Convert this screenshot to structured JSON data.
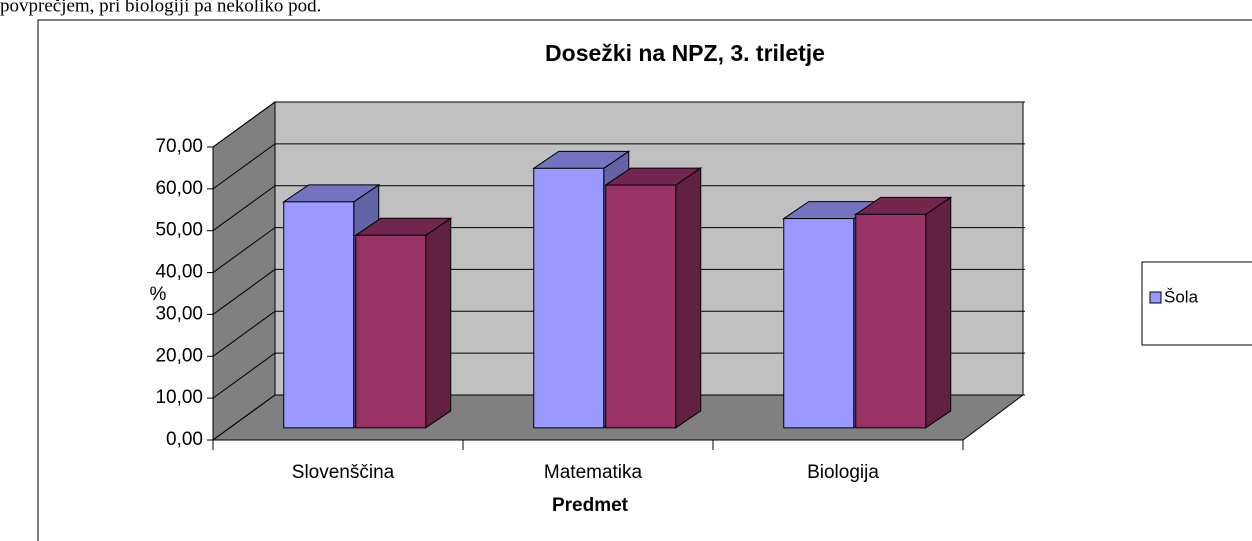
{
  "page_text": "povprečjem, pri biologiji pa nekoliko pod.",
  "chart_data": {
    "type": "bar3d",
    "title": "Dosežki na NPZ, 3. triletje",
    "x_label": "Predmet",
    "y_label": "%",
    "categories": [
      "Slovenščina",
      "Matematika",
      "Biologija"
    ],
    "series": [
      {
        "name": "Šola",
        "color": "#9999ff",
        "values": [
          54,
          62,
          50
        ]
      },
      {
        "name": null,
        "color": "#993366",
        "values": [
          46,
          58,
          51
        ]
      }
    ],
    "ylim": [
      0,
      70
    ],
    "yticks": [
      {
        "value": 0,
        "label": "0,00"
      },
      {
        "value": 10,
        "label": "10,00"
      },
      {
        "value": 20,
        "label": "20,00"
      },
      {
        "value": 30,
        "label": "30,00"
      },
      {
        "value": 40,
        "label": "40,00"
      },
      {
        "value": 50,
        "label": "50,00"
      },
      {
        "value": 60,
        "label": "60,00"
      },
      {
        "value": 70,
        "label": "70,00"
      }
    ],
    "grid": true,
    "legend": "right"
  }
}
